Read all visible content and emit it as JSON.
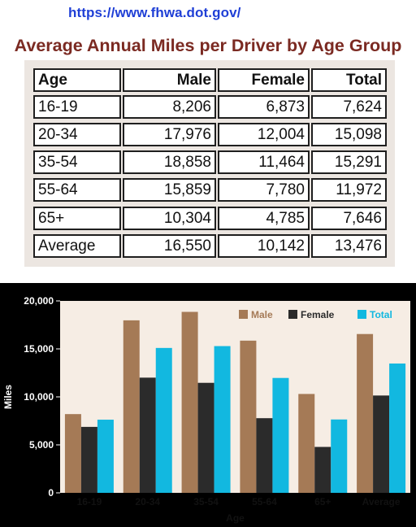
{
  "source_url": "https://www.fhwa.dot.gov/",
  "table": {
    "title": "Average Annual Miles per Driver by Age Group",
    "headers": [
      "Age",
      "Male",
      "Female",
      "Total"
    ],
    "rows": [
      [
        "16-19",
        "8,206",
        "6,873",
        "7,624"
      ],
      [
        "20-34",
        "17,976",
        "12,004",
        "15,098"
      ],
      [
        "35-54",
        "18,858",
        "11,464",
        "15,291"
      ],
      [
        "55-64",
        "15,859",
        "7,780",
        "11,972"
      ],
      [
        "65+",
        "10,304",
        "4,785",
        "7,646"
      ],
      [
        "Average",
        "16,550",
        "10,142",
        "13,476"
      ]
    ]
  },
  "chart_data": {
    "type": "bar",
    "xlabel": "Age",
    "ylabel": "Miles",
    "ylim": [
      0,
      20000
    ],
    "yticks": [
      0,
      5000,
      10000,
      15000,
      20000
    ],
    "ytick_labels": [
      "0",
      "5,000",
      "10,000",
      "15,000",
      "20,000"
    ],
    "categories": [
      "16-19",
      "20-34",
      "35-54",
      "55-64",
      "65+",
      "Average"
    ],
    "series": [
      {
        "name": "Male",
        "values": [
          8206,
          17976,
          18858,
          15859,
          10304,
          16550
        ]
      },
      {
        "name": "Female",
        "values": [
          6873,
          12004,
          11464,
          7780,
          4785,
          10142
        ]
      },
      {
        "name": "Total",
        "values": [
          7624,
          15098,
          15291,
          11972,
          7646,
          13476
        ]
      }
    ],
    "colors": {
      "Male": "#a57a56",
      "Female": "#2b2b2b",
      "Total": "#12b8e0"
    },
    "legend_text_colors": {
      "Male": "#a57a56",
      "Female": "#2b2b2b",
      "Total": "#12b8e0"
    },
    "legend_position": "top-right",
    "grid": false,
    "plot_background": "#f6ede4"
  }
}
